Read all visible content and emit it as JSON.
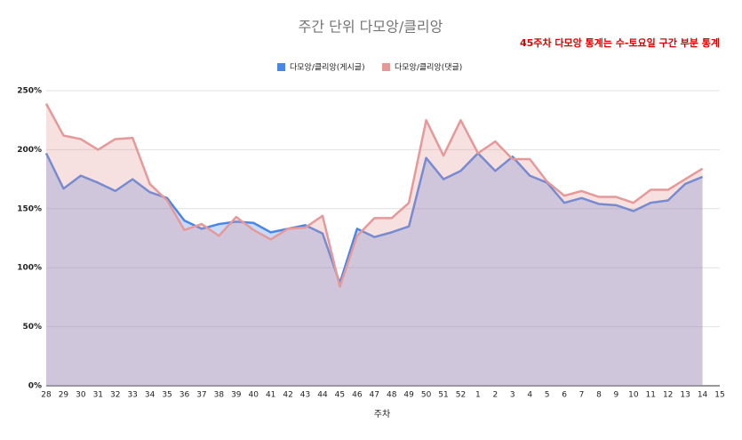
{
  "chart_data": {
    "type": "area",
    "title": "주간 단위 다모앙/클리앙",
    "annotation": "45주차 다모앙 통계는 수-토요일 구간 부분 통계",
    "xlabel": "주차",
    "categories": [
      "28",
      "29",
      "30",
      "31",
      "32",
      "33",
      "34",
      "35",
      "36",
      "37",
      "38",
      "39",
      "40",
      "41",
      "42",
      "43",
      "44",
      "45",
      "46",
      "47",
      "48",
      "49",
      "50",
      "51",
      "52",
      "1",
      "2",
      "3",
      "4",
      "5",
      "6",
      "7",
      "8",
      "9",
      "10",
      "11",
      "12",
      "13",
      "14",
      "15"
    ],
    "series": [
      {
        "name": "다모앙/클리앙(게시글)",
        "color": "#4a86e8",
        "values": [
          197,
          167,
          178,
          172,
          165,
          175,
          164,
          159,
          140,
          133,
          137,
          139,
          138,
          130,
          133,
          136,
          129,
          87,
          133,
          126,
          130,
          135,
          193,
          175,
          182,
          197,
          182,
          194,
          178,
          172,
          155,
          159,
          154,
          153,
          148,
          155,
          157,
          171,
          177,
          null
        ]
      },
      {
        "name": "다모앙/클리앙(댓글)",
        "color": "#e69999",
        "values": [
          239,
          212,
          209,
          200,
          209,
          210,
          171,
          157,
          132,
          137,
          127,
          143,
          132,
          124,
          133,
          134,
          144,
          84,
          127,
          142,
          142,
          155,
          225,
          195,
          225,
          197,
          207,
          192,
          192,
          173,
          161,
          165,
          160,
          160,
          155,
          166,
          166,
          175,
          184,
          null
        ]
      }
    ],
    "ylim": [
      0,
      250
    ],
    "yticks": [
      {
        "value": 0,
        "label": "0%"
      },
      {
        "value": 50,
        "label": "50%"
      },
      {
        "value": 100,
        "label": "100%"
      },
      {
        "value": 150,
        "label": "150%"
      },
      {
        "value": 200,
        "label": "200%"
      },
      {
        "value": 250,
        "label": "250%"
      }
    ],
    "grid": true,
    "legend": "top"
  }
}
